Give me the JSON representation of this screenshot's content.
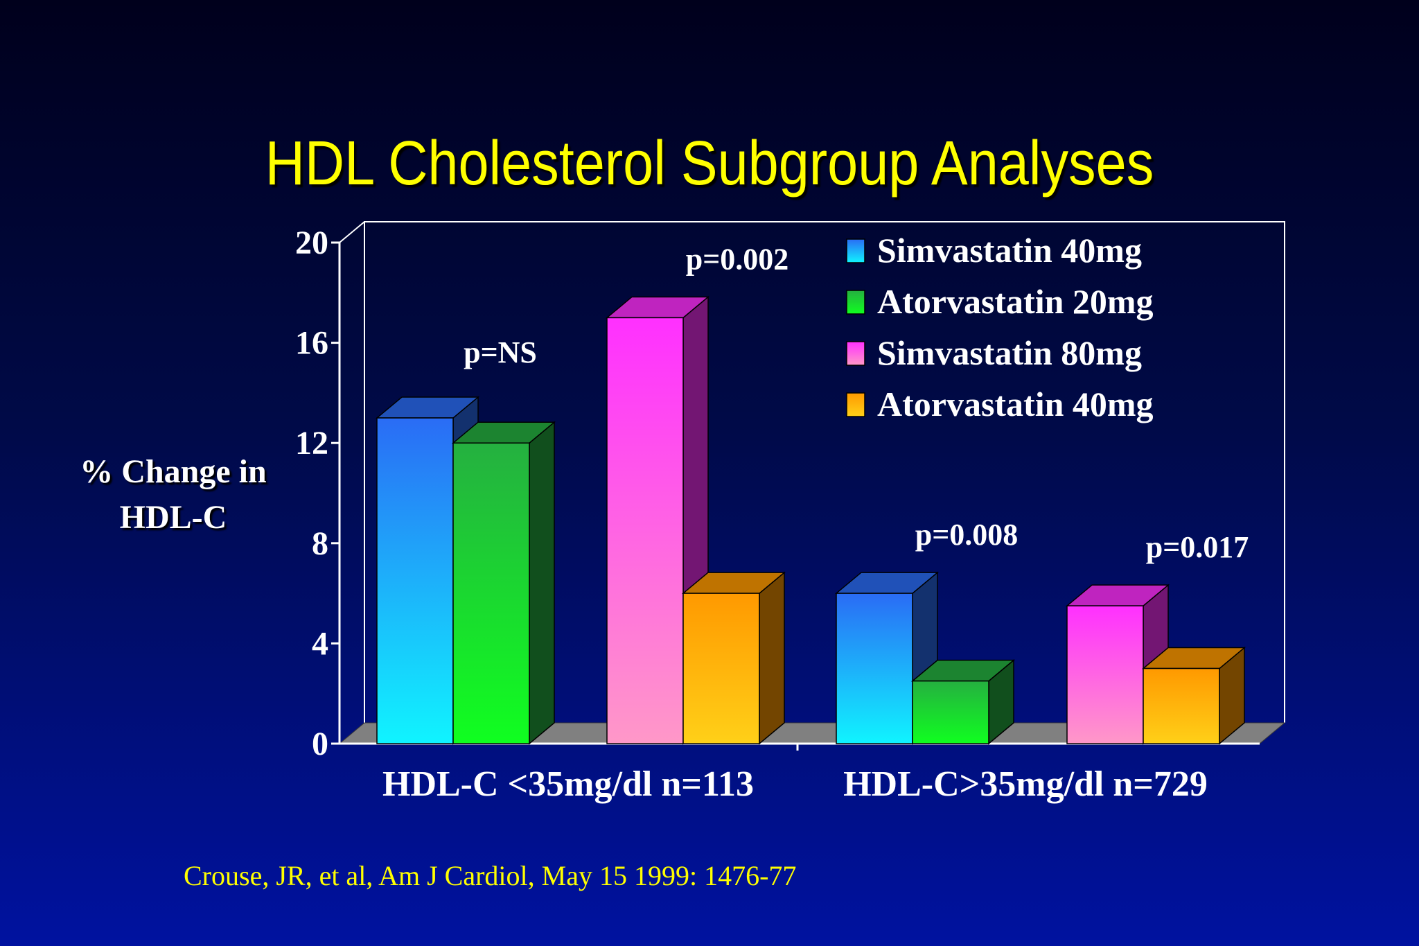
{
  "chart_data": {
    "type": "bar",
    "title": "HDL Cholesterol Subgroup Analyses",
    "ylabel": [
      "% Change in",
      "HDL-C"
    ],
    "ylim": [
      0,
      20
    ],
    "yticks": [
      0,
      4,
      8,
      12,
      16,
      20
    ],
    "categories": [
      "HDL-C <35mg/dl   n=113",
      "HDL-C>35mg/dl   n=729"
    ],
    "series": [
      {
        "name": "Simvastatin  40mg",
        "values": [
          13,
          6
        ],
        "color": "#2a6cf5"
      },
      {
        "name": "Atorvastatin 20mg",
        "values": [
          12,
          2.5
        ],
        "color": "#25b040"
      },
      {
        "name": "Simvastatin  80mg",
        "values": [
          17,
          5.5
        ],
        "color": "#ff30ff"
      },
      {
        "name": "Atorvastatin 40mg",
        "values": [
          6,
          3
        ],
        "color": "#ff9900"
      }
    ],
    "annotations": [
      {
        "text": "p=NS",
        "category": 0,
        "pair": 0
      },
      {
        "text": "p=0.002",
        "category": 0,
        "pair": 1
      },
      {
        "text": "p=0.008",
        "category": 1,
        "pair": 0
      },
      {
        "text": "p=0.017",
        "category": 1,
        "pair": 1
      }
    ],
    "legend": "top-right",
    "grid": false
  },
  "source": "Crouse, JR, et al, Am J Cardiol, May 15 1999: 1476-77"
}
